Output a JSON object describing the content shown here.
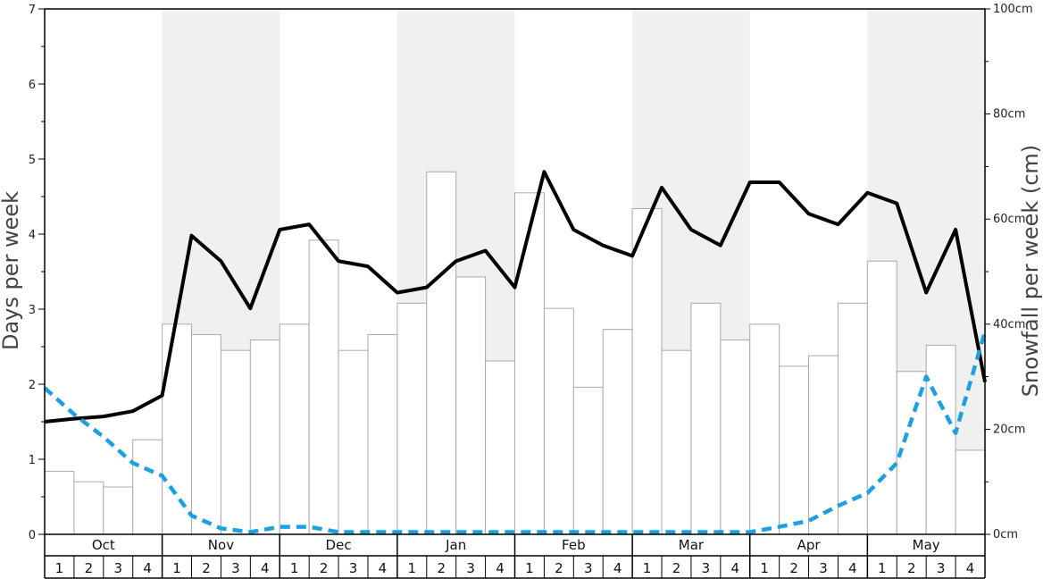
{
  "chart_data": {
    "type": "bar",
    "title": "",
    "ylabel_left": "Days per week",
    "ylabel_right": "Snowfall per week (cm)",
    "ylim_left": [
      0,
      7
    ],
    "left_ticks": [
      "0",
      "1",
      "2",
      "3",
      "4",
      "5",
      "6",
      "7"
    ],
    "ylim_right": [
      0,
      100
    ],
    "right_ticks": [
      "0cm",
      "20cm",
      "40cm",
      "60cm",
      "80cm",
      "100cm"
    ],
    "months": [
      "Oct",
      "Nov",
      "Dec",
      "Jan",
      "Feb",
      "Mar",
      "Apr",
      "May"
    ],
    "weeks": [
      "1",
      "2",
      "3",
      "4"
    ],
    "shaded_months": [
      "Nov",
      "Jan",
      "Mar",
      "May"
    ],
    "series": [
      {
        "kind": "bar",
        "axis": "right",
        "color": "#ffffff",
        "stroke": "#aaaaaa",
        "values": [
          12,
          10,
          9,
          18,
          40,
          38,
          35,
          37,
          40,
          56,
          35,
          38,
          44,
          69,
          49,
          33,
          65,
          43,
          28,
          39,
          62,
          35,
          44,
          37,
          40,
          32,
          34,
          44,
          52,
          31,
          36,
          16
        ]
      },
      {
        "kind": "line",
        "axis": "left",
        "color": "#000000",
        "style": "solid",
        "values": [
          1.5,
          1.54,
          1.57,
          1.64,
          1.85,
          3.98,
          3.64,
          3.01,
          4.06,
          4.13,
          3.64,
          3.57,
          3.22,
          3.29,
          3.64,
          3.78,
          3.29,
          4.83,
          4.06,
          3.85,
          3.71,
          4.62,
          4.06,
          3.85,
          4.69,
          4.69,
          4.27,
          4.13,
          4.55,
          4.41,
          3.22,
          4.06,
          2.03
        ]
      },
      {
        "kind": "line",
        "axis": "left",
        "color": "#1ba1e2",
        "style": "dashed",
        "values": [
          1.95,
          1.6,
          1.3,
          0.95,
          0.78,
          0.25,
          0.08,
          0.03,
          0.1,
          0.1,
          0.03,
          0.03,
          0.03,
          0.03,
          0.03,
          0.03,
          0.03,
          0.03,
          0.03,
          0.03,
          0.03,
          0.03,
          0.03,
          0.03,
          0.03,
          0.1,
          0.18,
          0.38,
          0.55,
          0.95,
          2.1,
          1.35,
          2.7
        ]
      }
    ]
  }
}
